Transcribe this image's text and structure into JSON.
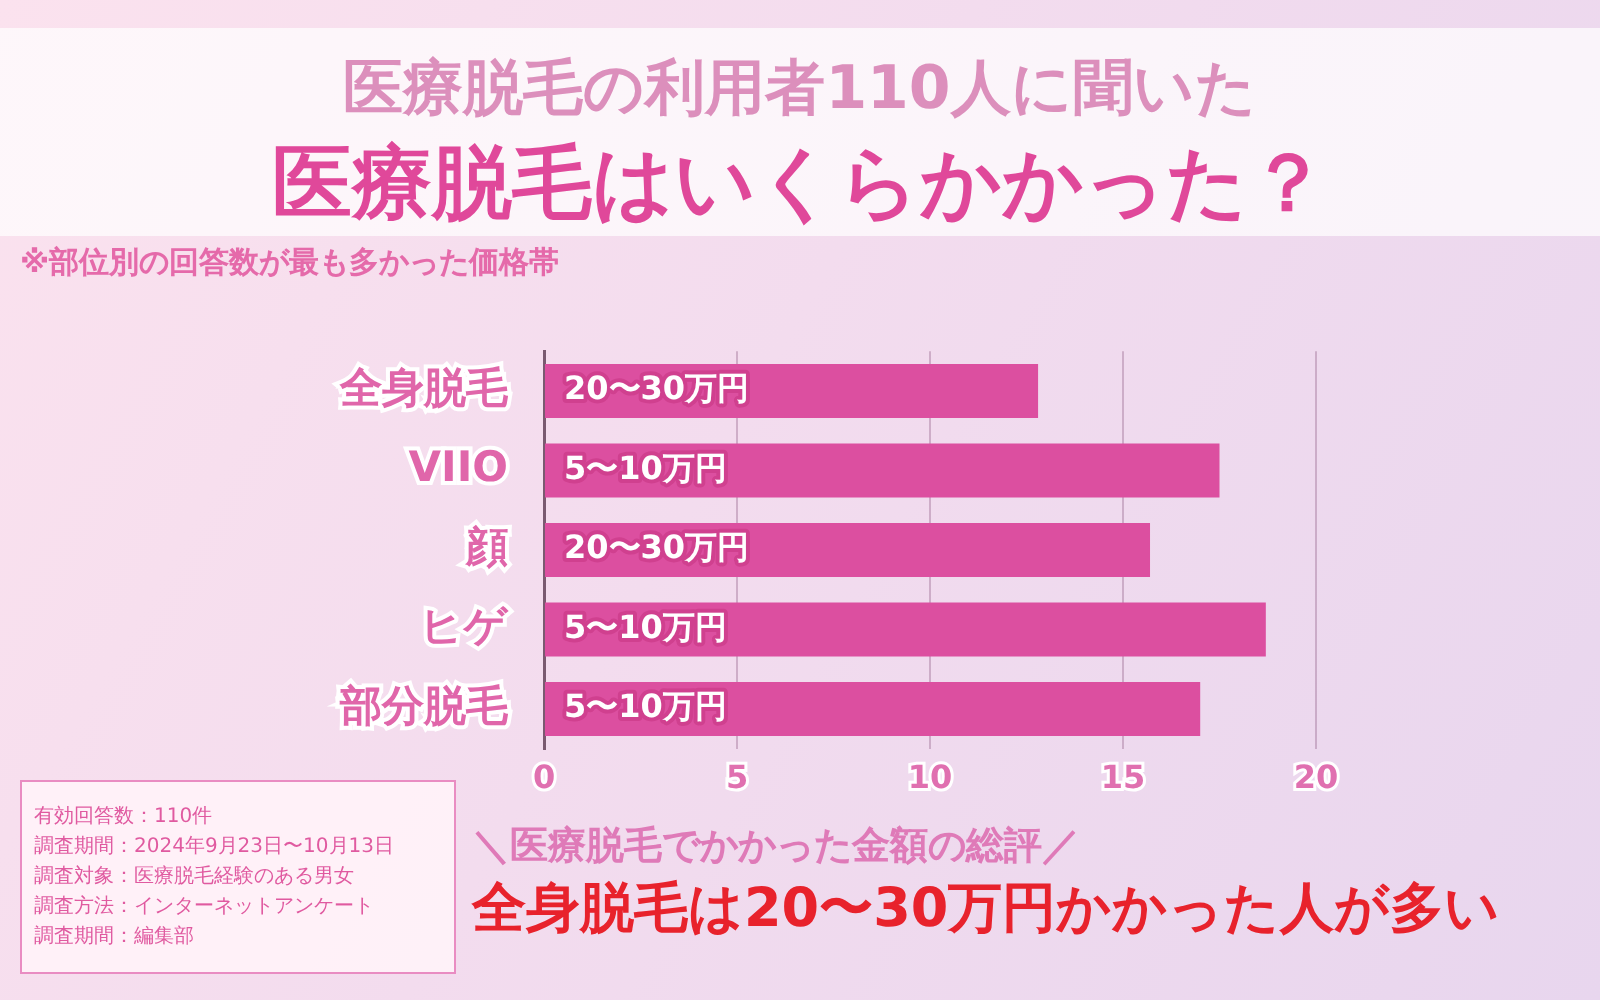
{
  "chart_data": {
    "type": "bar",
    "orientation": "horizontal",
    "title": "医療脱毛の利用者110人に聞いた",
    "subtitle": "医療脱毛はいくらかかった？",
    "categories": [
      "全身脱毛",
      "VIIO",
      "顔",
      "ヒゲ",
      "部分脱毛"
    ],
    "values": [
      12.8,
      17.5,
      15.7,
      18.7,
      17.0
    ],
    "color": "#dc4fa0",
    "xlim": [
      0,
      20
    ],
    "xticks": [
      0,
      5,
      10,
      15,
      20
    ],
    "grid": "x",
    "annotations": [
      "※部位別の回答数が最も多かった価格帯",
      "＼医療脱毛でかかった金額の総評／",
      "全身脱毛は20〜30万円かかった人が多い",
      "有効回答数：110件",
      "調査期間：2024年9月23日〜10月13日",
      "調査対象：医療脱毛経験のある男女",
      "調査方法：インターネットアンケート",
      "調査期間：編集部",
      {
        "text": "20〜30万円",
        "y": "全身脱毛"
      },
      {
        "text": "5〜10万円",
        "y": "VIIO"
      },
      {
        "text": "20〜30万円",
        "y": "顔"
      },
      {
        "text": "5〜10万円",
        "y": "ヒゲ"
      },
      {
        "text": "5〜10万円",
        "y": "部分脱毛"
      }
    ]
  }
}
